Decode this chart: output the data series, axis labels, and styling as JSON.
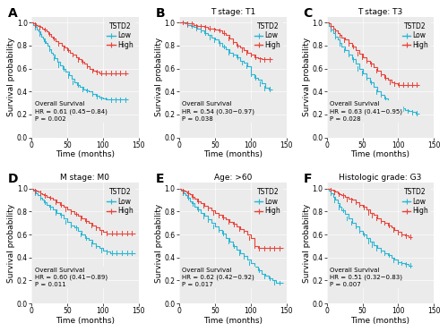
{
  "panels": [
    {
      "label": "A",
      "title": "",
      "hr_text": "Overall Survival\nHR = 0.61 (0.45−0.84)\nP = 0.002",
      "low_x": [
        0,
        3,
        6,
        8,
        10,
        12,
        14,
        16,
        18,
        20,
        22,
        25,
        28,
        30,
        33,
        36,
        40,
        44,
        48,
        52,
        56,
        60,
        64,
        68,
        72,
        76,
        80,
        85,
        90,
        95,
        100,
        105,
        110,
        115,
        120,
        125,
        130,
        135
      ],
      "low_y": [
        1.0,
        0.98,
        0.96,
        0.94,
        0.92,
        0.9,
        0.88,
        0.86,
        0.84,
        0.82,
        0.8,
        0.77,
        0.74,
        0.72,
        0.69,
        0.66,
        0.63,
        0.6,
        0.57,
        0.54,
        0.51,
        0.48,
        0.46,
        0.44,
        0.42,
        0.41,
        0.4,
        0.38,
        0.36,
        0.35,
        0.34,
        0.33,
        0.33,
        0.33,
        0.33,
        0.33,
        0.33,
        0.33
      ],
      "high_x": [
        0,
        3,
        6,
        9,
        12,
        15,
        18,
        21,
        24,
        27,
        30,
        34,
        38,
        42,
        46,
        50,
        54,
        58,
        62,
        66,
        70,
        74,
        78,
        82,
        86,
        90,
        95,
        100,
        105,
        110,
        115,
        120,
        125,
        130,
        135
      ],
      "high_y": [
        1.0,
        0.99,
        0.98,
        0.97,
        0.96,
        0.95,
        0.94,
        0.92,
        0.9,
        0.88,
        0.86,
        0.84,
        0.82,
        0.8,
        0.78,
        0.76,
        0.74,
        0.72,
        0.7,
        0.68,
        0.66,
        0.64,
        0.62,
        0.6,
        0.58,
        0.57,
        0.56,
        0.56,
        0.56,
        0.56,
        0.56,
        0.56,
        0.56,
        0.56,
        0.56
      ],
      "xlim": [
        0,
        150
      ],
      "ylim": [
        0.0,
        1.05
      ]
    },
    {
      "label": "B",
      "title": "T stage: T1",
      "hr_text": "Overall Survival\nHR = 0.54 (0.30−0.97)\nP = 0.038",
      "low_x": [
        0,
        4,
        8,
        12,
        16,
        20,
        25,
        30,
        35,
        40,
        45,
        50,
        55,
        60,
        65,
        70,
        75,
        80,
        85,
        90,
        95,
        100,
        105,
        110,
        115,
        120,
        125,
        130
      ],
      "low_y": [
        1.0,
        1.0,
        0.99,
        0.98,
        0.97,
        0.96,
        0.95,
        0.93,
        0.91,
        0.89,
        0.87,
        0.85,
        0.82,
        0.79,
        0.77,
        0.74,
        0.72,
        0.7,
        0.67,
        0.65,
        0.62,
        0.55,
        0.52,
        0.5,
        0.47,
        0.43,
        0.42,
        0.42
      ],
      "high_x": [
        0,
        4,
        8,
        12,
        16,
        20,
        25,
        30,
        35,
        40,
        45,
        50,
        55,
        60,
        65,
        70,
        75,
        80,
        85,
        90,
        95,
        100,
        105,
        110,
        115,
        120,
        125,
        130
      ],
      "high_y": [
        1.0,
        1.0,
        1.0,
        0.99,
        0.99,
        0.98,
        0.97,
        0.97,
        0.96,
        0.95,
        0.95,
        0.94,
        0.93,
        0.91,
        0.89,
        0.86,
        0.83,
        0.8,
        0.78,
        0.76,
        0.74,
        0.72,
        0.7,
        0.69,
        0.68,
        0.68,
        0.68,
        0.68
      ],
      "xlim": [
        0,
        150
      ],
      "ylim": [
        0.0,
        1.05
      ]
    },
    {
      "label": "C",
      "title": "T stage: T3",
      "hr_text": "Overall Survival\nHR = 0.63 (0.41−0.95)\nP = 0.028",
      "low_x": [
        0,
        3,
        6,
        9,
        12,
        15,
        18,
        21,
        25,
        30,
        35,
        40,
        45,
        50,
        55,
        60,
        65,
        70,
        75,
        80,
        85,
        90,
        95,
        100,
        105,
        110,
        115,
        120,
        125,
        130
      ],
      "low_y": [
        1.0,
        0.97,
        0.94,
        0.91,
        0.88,
        0.85,
        0.82,
        0.79,
        0.76,
        0.72,
        0.68,
        0.64,
        0.6,
        0.56,
        0.52,
        0.48,
        0.44,
        0.4,
        0.37,
        0.34,
        0.31,
        0.29,
        0.27,
        0.26,
        0.25,
        0.24,
        0.23,
        0.22,
        0.21,
        0.21
      ],
      "high_x": [
        0,
        3,
        6,
        9,
        12,
        15,
        18,
        21,
        25,
        30,
        35,
        40,
        45,
        50,
        55,
        60,
        65,
        70,
        75,
        80,
        85,
        90,
        95,
        100,
        105,
        110,
        115,
        120,
        125,
        130
      ],
      "high_y": [
        1.0,
        0.99,
        0.97,
        0.95,
        0.93,
        0.91,
        0.89,
        0.87,
        0.85,
        0.82,
        0.79,
        0.76,
        0.73,
        0.7,
        0.67,
        0.64,
        0.61,
        0.58,
        0.55,
        0.52,
        0.5,
        0.48,
        0.47,
        0.46,
        0.46,
        0.46,
        0.46,
        0.46,
        0.46,
        0.46
      ],
      "xlim": [
        0,
        150
      ],
      "ylim": [
        0.0,
        1.05
      ]
    },
    {
      "label": "D",
      "title": "M stage: M0",
      "hr_text": "Overall Survival\nHR = 0.60 (0.41−0.89)\nP = 0.011",
      "low_x": [
        0,
        3,
        6,
        9,
        12,
        15,
        18,
        21,
        25,
        30,
        35,
        40,
        45,
        50,
        55,
        60,
        65,
        70,
        75,
        80,
        85,
        90,
        95,
        100,
        105,
        110,
        115,
        120,
        125,
        130,
        135,
        140,
        145
      ],
      "low_y": [
        1.0,
        0.98,
        0.96,
        0.94,
        0.92,
        0.9,
        0.88,
        0.86,
        0.84,
        0.82,
        0.79,
        0.77,
        0.74,
        0.71,
        0.68,
        0.66,
        0.63,
        0.6,
        0.57,
        0.55,
        0.52,
        0.5,
        0.48,
        0.46,
        0.45,
        0.44,
        0.44,
        0.44,
        0.44,
        0.44,
        0.44,
        0.44,
        0.44
      ],
      "high_x": [
        0,
        3,
        6,
        9,
        12,
        15,
        18,
        21,
        25,
        30,
        35,
        40,
        45,
        50,
        55,
        60,
        65,
        70,
        75,
        80,
        85,
        90,
        95,
        100,
        105,
        110,
        115,
        120,
        125,
        130,
        135,
        140,
        145
      ],
      "high_y": [
        1.0,
        0.99,
        0.98,
        0.97,
        0.96,
        0.95,
        0.94,
        0.93,
        0.92,
        0.9,
        0.88,
        0.86,
        0.84,
        0.82,
        0.8,
        0.78,
        0.76,
        0.74,
        0.72,
        0.7,
        0.68,
        0.66,
        0.64,
        0.62,
        0.61,
        0.61,
        0.61,
        0.61,
        0.61,
        0.61,
        0.61,
        0.61,
        0.61
      ],
      "xlim": [
        0,
        150
      ],
      "ylim": [
        0.0,
        1.05
      ]
    },
    {
      "label": "E",
      "title": "Age: >60",
      "hr_text": "Overall Survival\nHR = 0.62 (0.42−0.92)\nP = 0.017",
      "low_x": [
        0,
        3,
        6,
        9,
        12,
        15,
        18,
        21,
        25,
        30,
        35,
        40,
        45,
        50,
        55,
        60,
        65,
        70,
        75,
        80,
        85,
        90,
        95,
        100,
        105,
        110,
        115,
        120,
        125,
        130,
        135,
        140,
        145
      ],
      "low_y": [
        1.0,
        0.98,
        0.96,
        0.94,
        0.92,
        0.89,
        0.87,
        0.84,
        0.82,
        0.79,
        0.76,
        0.73,
        0.7,
        0.67,
        0.64,
        0.61,
        0.57,
        0.54,
        0.5,
        0.47,
        0.44,
        0.41,
        0.38,
        0.35,
        0.32,
        0.29,
        0.26,
        0.24,
        0.22,
        0.2,
        0.18,
        0.18,
        0.18
      ],
      "high_x": [
        0,
        3,
        6,
        9,
        12,
        15,
        18,
        21,
        25,
        30,
        35,
        40,
        45,
        50,
        55,
        60,
        65,
        70,
        75,
        80,
        85,
        90,
        95,
        100,
        105,
        110,
        115,
        120,
        125,
        130,
        135,
        140,
        145
      ],
      "high_y": [
        1.0,
        0.99,
        0.98,
        0.97,
        0.96,
        0.95,
        0.93,
        0.91,
        0.89,
        0.87,
        0.85,
        0.83,
        0.81,
        0.79,
        0.77,
        0.75,
        0.73,
        0.71,
        0.69,
        0.67,
        0.65,
        0.63,
        0.6,
        0.57,
        0.5,
        0.48,
        0.48,
        0.48,
        0.48,
        0.48,
        0.48,
        0.48,
        0.48
      ],
      "xlim": [
        0,
        150
      ],
      "ylim": [
        0.0,
        1.05
      ]
    },
    {
      "label": "F",
      "title": "Histologic grade: G3",
      "hr_text": "Overall Survival\nHR = 0.51 (0.32−0.83)\nP = 0.007",
      "low_x": [
        0,
        3,
        6,
        9,
        12,
        15,
        18,
        21,
        25,
        30,
        35,
        40,
        45,
        50,
        55,
        60,
        65,
        70,
        75,
        80,
        85,
        90,
        95,
        100,
        105,
        110,
        115,
        120
      ],
      "low_y": [
        1.0,
        0.98,
        0.96,
        0.93,
        0.9,
        0.87,
        0.84,
        0.81,
        0.78,
        0.74,
        0.7,
        0.67,
        0.63,
        0.6,
        0.57,
        0.54,
        0.51,
        0.48,
        0.46,
        0.44,
        0.42,
        0.4,
        0.38,
        0.36,
        0.35,
        0.34,
        0.33,
        0.33
      ],
      "high_x": [
        0,
        3,
        6,
        9,
        12,
        15,
        18,
        21,
        25,
        30,
        35,
        40,
        45,
        50,
        55,
        60,
        65,
        70,
        75,
        80,
        85,
        90,
        95,
        100,
        105,
        110,
        115,
        120
      ],
      "high_y": [
        1.0,
        1.0,
        0.99,
        0.98,
        0.97,
        0.96,
        0.95,
        0.94,
        0.93,
        0.91,
        0.9,
        0.88,
        0.86,
        0.84,
        0.82,
        0.79,
        0.77,
        0.74,
        0.72,
        0.7,
        0.68,
        0.66,
        0.64,
        0.62,
        0.6,
        0.59,
        0.58,
        0.58
      ],
      "xlim": [
        0,
        150
      ],
      "ylim": [
        0.0,
        1.05
      ]
    }
  ],
  "low_color": "#29B6D4",
  "high_color": "#E8433A",
  "legend_title": "TSTD2",
  "xlabel": "Time (months)",
  "ylabel": "Survival probability",
  "tick_fontsize": 5.5,
  "label_fontsize": 6.5,
  "title_fontsize": 6.5,
  "hr_fontsize": 5.0,
  "legend_fontsize": 5.5,
  "bg_color": "#EBEBEB"
}
